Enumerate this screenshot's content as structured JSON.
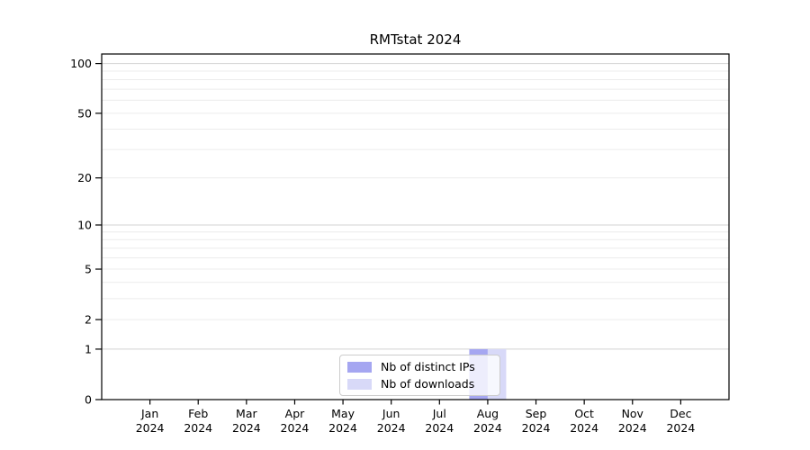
{
  "chart_data": {
    "type": "bar",
    "title": "RMTstat 2024",
    "categories": [
      "Jan",
      "Feb",
      "Mar",
      "Apr",
      "May",
      "Jun",
      "Jul",
      "Aug",
      "Sep",
      "Oct",
      "Nov",
      "Dec"
    ],
    "year_label": "2024",
    "series": [
      {
        "name": "Nb of distinct IPs",
        "color": "#a5a6f1",
        "values": [
          0,
          0,
          0,
          0,
          0,
          0,
          0,
          1,
          0,
          0,
          0,
          0
        ]
      },
      {
        "name": "Nb of downloads",
        "color": "#d8d9f8",
        "values": [
          0,
          0,
          0,
          0,
          0,
          0,
          0,
          1,
          0,
          0,
          0,
          0
        ]
      }
    ],
    "y_scale": "log1p",
    "y_tick_values": [
      0,
      1,
      2,
      5,
      10,
      20,
      50,
      100
    ],
    "y_minor_gridlines": [
      2,
      3,
      4,
      5,
      6,
      7,
      8,
      9,
      20,
      30,
      40,
      50,
      60,
      70,
      80,
      90
    ],
    "y_major_gridlines": [
      1,
      10,
      100
    ],
    "ylim": [
      0,
      120
    ],
    "grid": true,
    "legend_position": "bottom-center"
  },
  "colors": {
    "bar_distinct_ips": "#a5a6f1",
    "bar_downloads": "#d8d9f8",
    "minor_gridline": "#ececec",
    "major_gridline": "#d3d3d3",
    "axis_line": "#000000",
    "tick_text": "#000000",
    "legend_border": "#cccccc"
  }
}
